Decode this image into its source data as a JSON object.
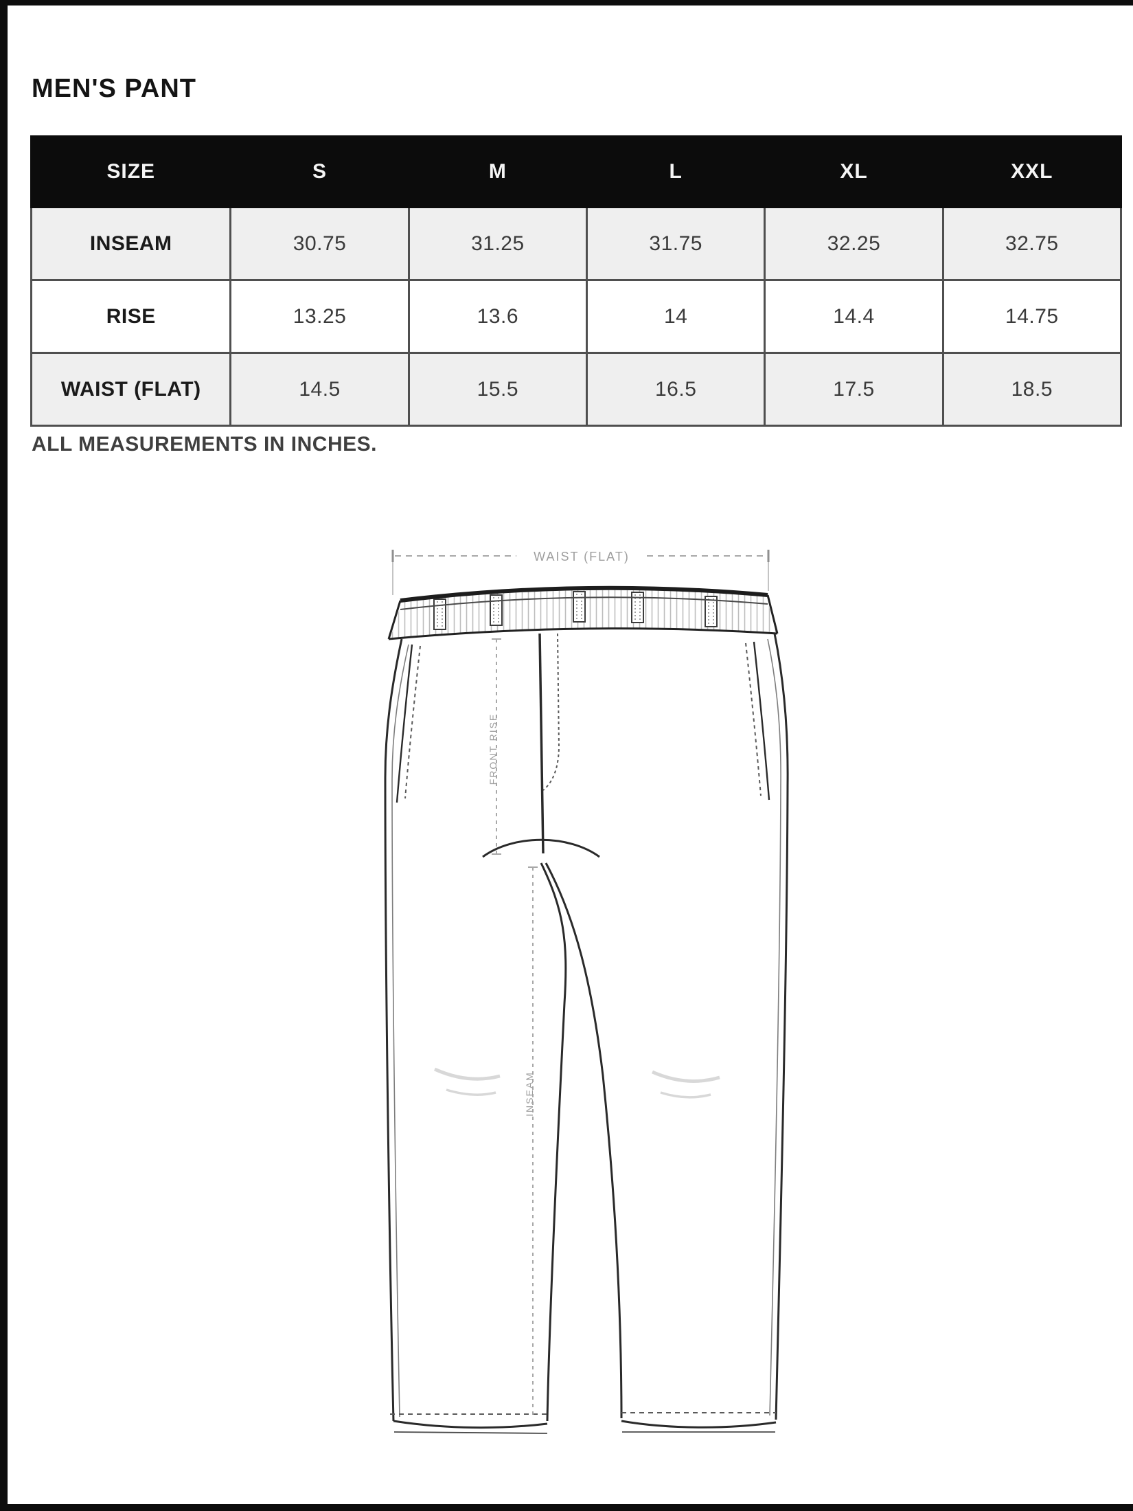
{
  "page": {
    "title": "MEN'S PANT",
    "note": "ALL MEASUREMENTS IN INCHES."
  },
  "size_chart": {
    "columns": [
      "SIZE",
      "S",
      "M",
      "L",
      "XL",
      "XXL"
    ],
    "rows": [
      {
        "label": "INSEAM",
        "values": [
          "30.75",
          "31.25",
          "31.75",
          "32.25",
          "32.75"
        ]
      },
      {
        "label": "RISE",
        "values": [
          "13.25",
          "13.6",
          "14",
          "14.4",
          "14.75"
        ]
      },
      {
        "label": "WAIST (FLAT)",
        "values": [
          "14.5",
          "15.5",
          "16.5",
          "17.5",
          "18.5"
        ]
      }
    ]
  },
  "chart_data": {
    "type": "table",
    "title": "MEN'S PANT",
    "columns": [
      "SIZE",
      "S",
      "M",
      "L",
      "XL",
      "XXL"
    ],
    "rows": [
      [
        "INSEAM",
        30.75,
        31.25,
        31.75,
        32.25,
        32.75
      ],
      [
        "RISE",
        13.25,
        13.6,
        14,
        14.4,
        14.75
      ],
      [
        "WAIST (FLAT)",
        14.5,
        15.5,
        16.5,
        17.5,
        18.5
      ]
    ],
    "units": "inches"
  },
  "diagram": {
    "waist_label": "WAIST (FLAT)",
    "front_rise_label": "FRONT RISE",
    "inseam_label": "INSEAM"
  },
  "colors": {
    "header_bg": "#0c0c0c",
    "header_text": "#f5f5f5",
    "row_alt_bg": "#efefef",
    "table_border": "#4f4f4f",
    "sketch_line": "#222222",
    "dimension_line": "#a8a8a8",
    "frame": "#0d0d0d"
  }
}
